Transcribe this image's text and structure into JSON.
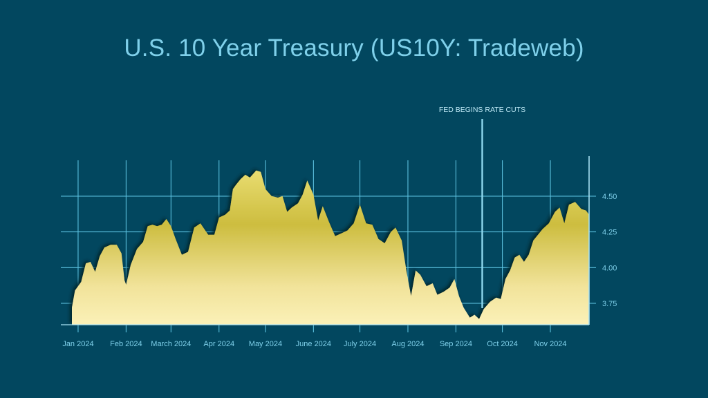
{
  "title": "U.S. 10 Year Treasury (US10Y: Tradeweb)",
  "chart_data": {
    "type": "area",
    "title": "U.S. 10 Year Treasury (US10Y: Tradeweb)",
    "xlabel": "",
    "ylabel": "",
    "ylim": [
      3.6,
      4.78
    ],
    "xlim": [
      "2023-12-28",
      "2024-11-26"
    ],
    "grid": true,
    "y_axis_side": "right",
    "x_ticks": [
      {
        "date": "2024-01-01",
        "label": "Jan 2024"
      },
      {
        "date": "2024-02-01",
        "label": "Feb 2024"
      },
      {
        "date": "2024-03-01",
        "label": "March 2024"
      },
      {
        "date": "2024-04-01",
        "label": "Apr 2024"
      },
      {
        "date": "2024-05-01",
        "label": "May 2024"
      },
      {
        "date": "2024-06-01",
        "label": "June 2024"
      },
      {
        "date": "2024-07-01",
        "label": "July 2024"
      },
      {
        "date": "2024-08-01",
        "label": "Aug 2024"
      },
      {
        "date": "2024-09-01",
        "label": "Sep 2024"
      },
      {
        "date": "2024-10-01",
        "label": "Oct 2024"
      },
      {
        "date": "2024-11-01",
        "label": "Nov 2024"
      }
    ],
    "y_ticks": [
      {
        "value": 3.75,
        "label": "3.75"
      },
      {
        "value": 4.0,
        "label": "4.00"
      },
      {
        "value": 4.25,
        "label": "4.25"
      },
      {
        "value": 4.5,
        "label": "4.50"
      }
    ],
    "annotations": [
      {
        "date": "2024-09-18",
        "label": "FED BEGINS RATE CUTS"
      }
    ],
    "series": [
      {
        "points": [
          [
            "2023-12-28",
            3.72
          ],
          [
            "2023-12-30",
            3.84
          ],
          [
            "2024-01-03",
            3.9
          ],
          [
            "2024-01-06",
            4.03
          ],
          [
            "2024-01-09",
            4.04
          ],
          [
            "2024-01-12",
            3.97
          ],
          [
            "2024-01-15",
            4.08
          ],
          [
            "2024-01-18",
            4.14
          ],
          [
            "2024-01-22",
            4.16
          ],
          [
            "2024-01-26",
            4.16
          ],
          [
            "2024-01-29",
            4.1
          ],
          [
            "2024-01-31",
            3.91
          ],
          [
            "2024-02-01",
            3.88
          ],
          [
            "2024-02-04",
            4.02
          ],
          [
            "2024-02-08",
            4.13
          ],
          [
            "2024-02-12",
            4.18
          ],
          [
            "2024-02-15",
            4.29
          ],
          [
            "2024-02-18",
            4.3
          ],
          [
            "2024-02-21",
            4.29
          ],
          [
            "2024-02-24",
            4.3
          ],
          [
            "2024-02-27",
            4.34
          ],
          [
            "2024-03-01",
            4.29
          ],
          [
            "2024-03-04",
            4.2
          ],
          [
            "2024-03-08",
            4.09
          ],
          [
            "2024-03-12",
            4.11
          ],
          [
            "2024-03-16",
            4.28
          ],
          [
            "2024-03-20",
            4.31
          ],
          [
            "2024-03-25",
            4.23
          ],
          [
            "2024-03-29",
            4.23
          ],
          [
            "2024-04-01",
            4.35
          ],
          [
            "2024-04-05",
            4.37
          ],
          [
            "2024-04-08",
            4.4
          ],
          [
            "2024-04-10",
            4.55
          ],
          [
            "2024-04-12",
            4.58
          ],
          [
            "2024-04-15",
            4.62
          ],
          [
            "2024-04-18",
            4.65
          ],
          [
            "2024-04-21",
            4.63
          ],
          [
            "2024-04-25",
            4.68
          ],
          [
            "2024-04-28",
            4.67
          ],
          [
            "2024-05-01",
            4.55
          ],
          [
            "2024-05-05",
            4.5
          ],
          [
            "2024-05-09",
            4.49
          ],
          [
            "2024-05-12",
            4.5
          ],
          [
            "2024-05-15",
            4.39
          ],
          [
            "2024-05-18",
            4.42
          ],
          [
            "2024-05-22",
            4.45
          ],
          [
            "2024-05-25",
            4.51
          ],
          [
            "2024-05-28",
            4.61
          ],
          [
            "2024-06-01",
            4.51
          ],
          [
            "2024-06-04",
            4.33
          ],
          [
            "2024-06-07",
            4.43
          ],
          [
            "2024-06-11",
            4.32
          ],
          [
            "2024-06-15",
            4.22
          ],
          [
            "2024-06-19",
            4.24
          ],
          [
            "2024-06-23",
            4.26
          ],
          [
            "2024-06-27",
            4.31
          ],
          [
            "2024-07-01",
            4.44
          ],
          [
            "2024-07-05",
            4.31
          ],
          [
            "2024-07-09",
            4.3
          ],
          [
            "2024-07-13",
            4.2
          ],
          [
            "2024-07-17",
            4.17
          ],
          [
            "2024-07-21",
            4.25
          ],
          [
            "2024-07-24",
            4.28
          ],
          [
            "2024-07-28",
            4.19
          ],
          [
            "2024-07-31",
            3.98
          ],
          [
            "2024-08-03",
            3.8
          ],
          [
            "2024-08-06",
            3.98
          ],
          [
            "2024-08-09",
            3.95
          ],
          [
            "2024-08-13",
            3.87
          ],
          [
            "2024-08-17",
            3.89
          ],
          [
            "2024-08-20",
            3.81
          ],
          [
            "2024-08-24",
            3.83
          ],
          [
            "2024-08-28",
            3.86
          ],
          [
            "2024-08-31",
            3.92
          ],
          [
            "2024-09-03",
            3.8
          ],
          [
            "2024-09-06",
            3.72
          ],
          [
            "2024-09-10",
            3.65
          ],
          [
            "2024-09-13",
            3.67
          ],
          [
            "2024-09-16",
            3.64
          ],
          [
            "2024-09-19",
            3.71
          ],
          [
            "2024-09-23",
            3.76
          ],
          [
            "2024-09-27",
            3.79
          ],
          [
            "2024-09-30",
            3.78
          ],
          [
            "2024-10-03",
            3.92
          ],
          [
            "2024-10-06",
            3.98
          ],
          [
            "2024-10-09",
            4.07
          ],
          [
            "2024-10-12",
            4.09
          ],
          [
            "2024-10-15",
            4.04
          ],
          [
            "2024-10-18",
            4.09
          ],
          [
            "2024-10-21",
            4.19
          ],
          [
            "2024-10-24",
            4.23
          ],
          [
            "2024-10-27",
            4.27
          ],
          [
            "2024-10-31",
            4.31
          ],
          [
            "2024-11-04",
            4.39
          ],
          [
            "2024-11-07",
            4.42
          ],
          [
            "2024-11-10",
            4.31
          ],
          [
            "2024-11-13",
            4.44
          ],
          [
            "2024-11-17",
            4.46
          ],
          [
            "2024-11-21",
            4.41
          ],
          [
            "2024-11-24",
            4.4
          ],
          [
            "2024-11-26",
            4.37
          ]
        ]
      }
    ]
  }
}
